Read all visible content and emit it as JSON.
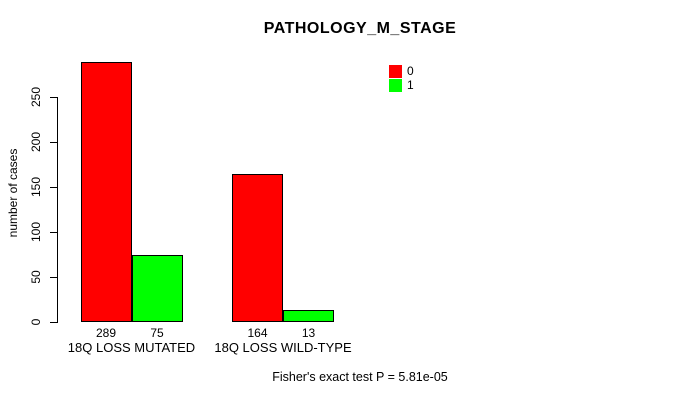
{
  "chart_data": {
    "type": "bar",
    "title": "PATHOLOGY_M_STAGE",
    "xlabel": "",
    "ylabel": "number of cases",
    "categories": [
      "18Q LOSS MUTATED",
      "18Q LOSS WILD-TYPE"
    ],
    "series": [
      {
        "name": "0",
        "color": "#ff0000",
        "values": [
          289,
          164
        ]
      },
      {
        "name": "1",
        "color": "#00ff00",
        "values": [
          75,
          13
        ]
      }
    ],
    "bar_value_labels": [
      [
        "289",
        "164"
      ],
      [
        "75",
        "13"
      ]
    ],
    "yticks": [
      0,
      50,
      100,
      150,
      200,
      250
    ],
    "ylim": [
      0,
      290
    ],
    "grid": false,
    "legend_position": "top-right",
    "annotation": "Fisher's exact test P = 5.81e-05"
  }
}
